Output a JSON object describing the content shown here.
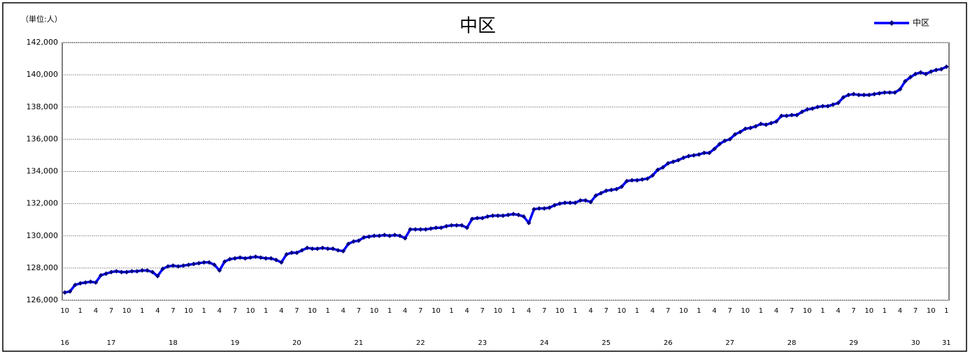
{
  "chart_data": {
    "type": "line",
    "title": "中区",
    "unit_label": "（単位:人）",
    "categories": [
      "10",
      null,
      null,
      "1",
      null,
      null,
      "4",
      null,
      null,
      "7",
      null,
      null,
      "10",
      null,
      null,
      "1",
      null,
      null,
      "4",
      null,
      null,
      "7",
      null,
      null,
      "10",
      null,
      null,
      "1",
      null,
      null,
      "4",
      null,
      null,
      "7",
      null,
      null,
      "10",
      null,
      null,
      "1",
      null,
      null,
      "4",
      null,
      null,
      "7",
      null,
      null,
      "10",
      null,
      null,
      "1",
      null,
      null,
      "4",
      null,
      null,
      "7",
      null,
      null,
      "10",
      null,
      null,
      "1",
      null,
      null,
      "4",
      null,
      null,
      "7",
      null,
      null,
      "10",
      null,
      null,
      "1",
      null,
      null,
      "4",
      null,
      null,
      "7",
      null,
      null,
      "10",
      null,
      null,
      "1",
      null,
      null,
      "4",
      null,
      null,
      "7",
      null,
      null,
      "10",
      null,
      null,
      "1",
      null,
      null,
      "4",
      null,
      null,
      "7",
      null,
      null,
      "10",
      null,
      null,
      "1",
      null,
      null,
      "4",
      null,
      null,
      "7",
      null,
      null,
      "10",
      null,
      null,
      "1",
      null,
      null,
      "4",
      null,
      null,
      "7",
      null,
      null,
      "10",
      null,
      null,
      "1",
      null,
      null,
      "4",
      null,
      null,
      "7",
      null,
      null,
      "10",
      null,
      null,
      "1",
      null,
      null,
      "4",
      null,
      null,
      "7",
      null,
      null,
      "10",
      null,
      null,
      "1",
      null,
      null,
      "4",
      null,
      null,
      "7",
      null,
      null,
      "10",
      null,
      null,
      "1"
    ],
    "year_labels": [
      "16",
      null,
      null,
      null,
      null,
      null,
      null,
      null,
      null,
      "17",
      null,
      null,
      null,
      null,
      null,
      null,
      null,
      null,
      null,
      null,
      null,
      "18",
      null,
      null,
      null,
      null,
      null,
      null,
      null,
      null,
      null,
      null,
      null,
      "19",
      null,
      null,
      null,
      null,
      null,
      null,
      null,
      null,
      null,
      null,
      null,
      "20",
      null,
      null,
      null,
      null,
      null,
      null,
      null,
      null,
      null,
      null,
      null,
      "21",
      null,
      null,
      null,
      null,
      null,
      null,
      null,
      null,
      null,
      null,
      null,
      "22",
      null,
      null,
      null,
      null,
      null,
      null,
      null,
      null,
      null,
      null,
      null,
      "23",
      null,
      null,
      null,
      null,
      null,
      null,
      null,
      null,
      null,
      null,
      null,
      "24",
      null,
      null,
      null,
      null,
      null,
      null,
      null,
      null,
      null,
      null,
      null,
      "25",
      null,
      null,
      null,
      null,
      null,
      null,
      null,
      null,
      null,
      null,
      null,
      "26",
      null,
      null,
      null,
      null,
      null,
      null,
      null,
      null,
      null,
      null,
      null,
      "27",
      null,
      null,
      null,
      null,
      null,
      null,
      null,
      null,
      null,
      null,
      null,
      "28",
      null,
      null,
      null,
      null,
      null,
      null,
      null,
      null,
      null,
      null,
      null,
      "29",
      null,
      null,
      null,
      null,
      null,
      null,
      null,
      null,
      null,
      null,
      null,
      "30",
      null,
      null,
      null,
      null,
      null,
      "31"
    ],
    "series": [
      {
        "name": "中区",
        "color": "#0000ff",
        "marker_color": "#000080",
        "values": [
          126480,
          126550,
          126950,
          127050,
          127100,
          127150,
          127100,
          127550,
          127650,
          127750,
          127800,
          127750,
          127750,
          127800,
          127800,
          127850,
          127850,
          127750,
          127500,
          127950,
          128100,
          128150,
          128100,
          128150,
          128200,
          128250,
          128300,
          128350,
          128350,
          128200,
          127850,
          128400,
          128550,
          128600,
          128650,
          128600,
          128650,
          128700,
          128650,
          128600,
          128600,
          128500,
          128350,
          128850,
          128950,
          128950,
          129100,
          129250,
          129200,
          129200,
          129250,
          129200,
          129200,
          129100,
          129050,
          129500,
          129650,
          129700,
          129900,
          129950,
          130000,
          130000,
          130050,
          130000,
          130050,
          130000,
          129850,
          130400,
          130400,
          130400,
          130400,
          130450,
          130500,
          130500,
          130600,
          130650,
          130650,
          130650,
          130500,
          131050,
          131100,
          131100,
          131200,
          131250,
          131250,
          131250,
          131300,
          131350,
          131300,
          131200,
          130800,
          131650,
          131700,
          131700,
          131750,
          131900,
          132000,
          132050,
          132050,
          132050,
          132200,
          132200,
          132100,
          132500,
          132650,
          132800,
          132850,
          132900,
          133050,
          133400,
          133450,
          133450,
          133500,
          133550,
          133750,
          134100,
          134250,
          134500,
          134600,
          134700,
          134850,
          134950,
          135000,
          135050,
          135150,
          135150,
          135400,
          135700,
          135900,
          136000,
          136300,
          136450,
          136650,
          136700,
          136800,
          136950,
          136900,
          137000,
          137100,
          137450,
          137450,
          137500,
          137500,
          137700,
          137850,
          137900,
          138000,
          138050,
          138050,
          138150,
          138250,
          138600,
          138750,
          138800,
          138750,
          138750,
          138750,
          138800,
          138850,
          138900,
          138900,
          138900,
          139100,
          139600,
          139850,
          140050,
          140150,
          140050,
          140200,
          140300,
          140350,
          140500
        ]
      }
    ],
    "ylim": [
      126000,
      142000
    ],
    "yticks": [
      {
        "value": 126000,
        "label": "126,000"
      },
      {
        "value": 128000,
        "label": "128,000"
      },
      {
        "value": 130000,
        "label": "130,000"
      },
      {
        "value": 132000,
        "label": "132,000"
      },
      {
        "value": 134000,
        "label": "134,000"
      },
      {
        "value": 136000,
        "label": "136,000"
      },
      {
        "value": 138000,
        "label": "138,000"
      },
      {
        "value": 140000,
        "label": "140,000"
      },
      {
        "value": 142000,
        "label": "142,000"
      }
    ],
    "grid": true,
    "legend": "top-right"
  }
}
